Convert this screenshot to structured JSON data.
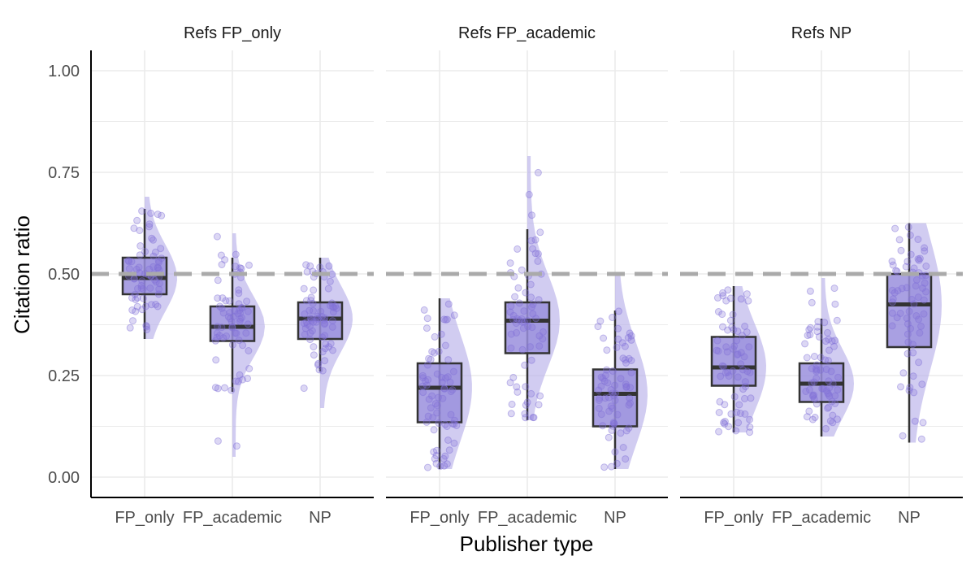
{
  "chart_data": {
    "type": "box",
    "title": "",
    "xlabel": "Publisher type",
    "ylabel": "Citation ratio",
    "ylim": [
      -0.05,
      1.05
    ],
    "y_ticks": [
      "0.00",
      "0.25",
      "0.50",
      "0.75",
      "1.00"
    ],
    "y_tick_values": [
      0,
      0.25,
      0.5,
      0.75,
      1.0
    ],
    "categories": [
      "FP_only",
      "FP_academic",
      "NP"
    ],
    "reference_line": 0.5,
    "grid": true,
    "colors": {
      "box_fill": "#9a8fdd",
      "point": "#8070d8",
      "violin": "#b9b1ea",
      "box_line": "#333333",
      "ref_line": "#aaaaaa",
      "grid": "#ebebeb"
    },
    "panels": [
      {
        "strip": "Refs FP_only",
        "boxes": [
          {
            "category": "FP_only",
            "whisker_low": 0.34,
            "q1": 0.45,
            "median": 0.49,
            "q3": 0.54,
            "whisker_high": 0.66,
            "range": [
              0.34,
              0.69
            ]
          },
          {
            "category": "FP_academic",
            "whisker_low": 0.21,
            "q1": 0.335,
            "median": 0.37,
            "q3": 0.42,
            "whisker_high": 0.54,
            "range": [
              0.05,
              0.6
            ]
          },
          {
            "category": "NP",
            "whisker_low": 0.26,
            "q1": 0.34,
            "median": 0.39,
            "q3": 0.43,
            "whisker_high": 0.54,
            "range": [
              0.17,
              0.54
            ]
          }
        ]
      },
      {
        "strip": "Refs FP_academic",
        "boxes": [
          {
            "category": "FP_only",
            "whisker_low": 0.02,
            "q1": 0.135,
            "median": 0.22,
            "q3": 0.28,
            "whisker_high": 0.44,
            "range": [
              0.02,
              0.44
            ]
          },
          {
            "category": "FP_academic",
            "whisker_low": 0.14,
            "q1": 0.305,
            "median": 0.385,
            "q3": 0.43,
            "whisker_high": 0.61,
            "range": [
              0.14,
              0.79
            ]
          },
          {
            "category": "NP",
            "whisker_low": 0.02,
            "q1": 0.125,
            "median": 0.205,
            "q3": 0.265,
            "whisker_high": 0.41,
            "range": [
              0.02,
              0.5
            ]
          }
        ]
      },
      {
        "strip": "Refs NP",
        "boxes": [
          {
            "category": "FP_only",
            "whisker_low": 0.11,
            "q1": 0.225,
            "median": 0.27,
            "q3": 0.345,
            "whisker_high": 0.47,
            "range": [
              0.11,
              0.47
            ]
          },
          {
            "category": "FP_academic",
            "whisker_low": 0.1,
            "q1": 0.185,
            "median": 0.23,
            "q3": 0.28,
            "whisker_high": 0.39,
            "range": [
              0.1,
              0.49
            ]
          },
          {
            "category": "NP",
            "whisker_low": 0.085,
            "q1": 0.32,
            "median": 0.425,
            "q3": 0.5,
            "whisker_high": 0.625,
            "range": [
              0.085,
              0.625
            ]
          }
        ]
      }
    ]
  }
}
